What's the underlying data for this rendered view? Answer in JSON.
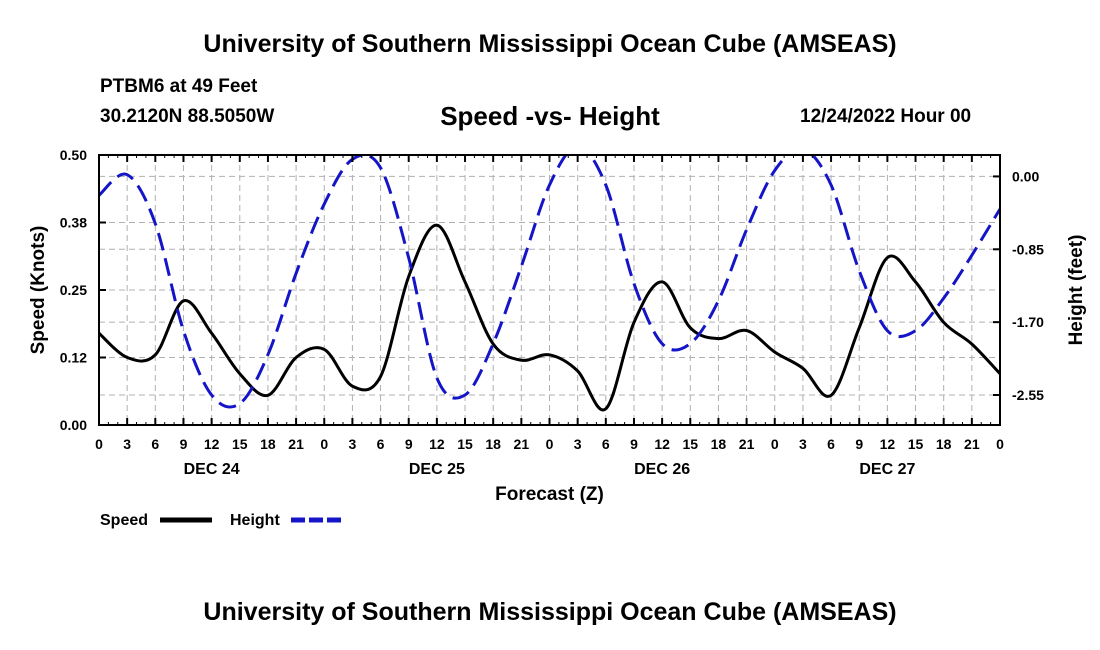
{
  "header": {
    "title": "University of Southern Mississippi Ocean Cube (AMSEAS)",
    "station": "PTBM6 at 49 Feet",
    "coords": "30.2120N  88.5050W",
    "subtitle": "Speed -vs- Height",
    "datetime": "12/24/2022 Hour 00"
  },
  "footer": {
    "title": "University of Southern Mississippi Ocean Cube (AMSEAS)"
  },
  "chart_data": {
    "type": "line",
    "title": "Speed -vs- Height",
    "xlabel": "Forecast (Z)",
    "ylabel": "Speed (Knots)",
    "y2label": "Height (feet)",
    "xlim": [
      0,
      96
    ],
    "ylim": [
      0,
      0.5
    ],
    "y2lim": [
      -2.9,
      0.25
    ],
    "x_ticks": [
      0,
      3,
      6,
      9,
      12,
      15,
      18,
      21,
      24,
      27,
      30,
      33,
      36,
      39,
      42,
      45,
      48,
      51,
      54,
      57,
      60,
      63,
      66,
      69,
      72,
      75,
      78,
      81,
      84,
      87,
      90,
      93,
      96
    ],
    "x_tick_labels": [
      "0",
      "3",
      "6",
      "9",
      "12",
      "15",
      "18",
      "21",
      "0",
      "3",
      "6",
      "9",
      "12",
      "15",
      "18",
      "21",
      "0",
      "3",
      "6",
      "9",
      "12",
      "15",
      "18",
      "21",
      "0",
      "3",
      "6",
      "9",
      "12",
      "15",
      "18",
      "21",
      "0"
    ],
    "date_labels": [
      {
        "x": 12,
        "label": "DEC 24"
      },
      {
        "x": 36,
        "label": "DEC 25"
      },
      {
        "x": 60,
        "label": "DEC 26"
      },
      {
        "x": 84,
        "label": "DEC 27"
      }
    ],
    "y_ticks": [
      0.0,
      0.125,
      0.25,
      0.375,
      0.5
    ],
    "y_tick_labels": [
      "0.00",
      "0.12",
      "0.25",
      "0.38",
      "0.50"
    ],
    "y2_ticks": [
      0.0,
      -0.85,
      -1.7,
      -2.55
    ],
    "y2_tick_labels": [
      "0.00",
      "-0.85",
      "-1.70",
      "-2.55"
    ],
    "grid": true,
    "legend": {
      "placement": "bottom-left"
    },
    "series": [
      {
        "name": "Speed",
        "axis": "left",
        "color": "#000000",
        "dash": "solid",
        "x": [
          0,
          3,
          6,
          9,
          12,
          15,
          18,
          21,
          24,
          27,
          30,
          33,
          36,
          39,
          42,
          45,
          48,
          51,
          54,
          57,
          60,
          63,
          66,
          69,
          72,
          75,
          78,
          81,
          84,
          87,
          90,
          93,
          96
        ],
        "values": [
          0.17,
          0.125,
          0.13,
          0.23,
          0.17,
          0.095,
          0.055,
          0.125,
          0.14,
          0.072,
          0.09,
          0.275,
          0.37,
          0.265,
          0.15,
          0.12,
          0.13,
          0.1,
          0.03,
          0.19,
          0.265,
          0.18,
          0.16,
          0.175,
          0.135,
          0.105,
          0.055,
          0.18,
          0.31,
          0.265,
          0.19,
          0.15,
          0.095
        ]
      },
      {
        "name": "Height",
        "axis": "right",
        "color": "#1515c8",
        "dash": "dashed",
        "x": [
          0,
          3,
          6,
          9,
          12,
          15,
          18,
          21,
          24,
          27,
          30,
          33,
          36,
          39,
          42,
          45,
          48,
          51,
          54,
          57,
          60,
          63,
          66,
          69,
          72,
          75,
          78,
          81,
          84,
          87,
          90,
          93,
          96
        ],
        "values": [
          -0.22,
          0.02,
          -0.55,
          -1.8,
          -2.55,
          -2.65,
          -2.08,
          -1.13,
          -0.32,
          0.2,
          0.1,
          -0.95,
          -2.35,
          -2.55,
          -1.95,
          -1.05,
          -0.1,
          0.35,
          -0.1,
          -1.25,
          -1.95,
          -1.95,
          -1.45,
          -0.62,
          0.07,
          0.32,
          -0.1,
          -1.1,
          -1.8,
          -1.8,
          -1.42,
          -0.92,
          -0.38
        ]
      }
    ]
  }
}
